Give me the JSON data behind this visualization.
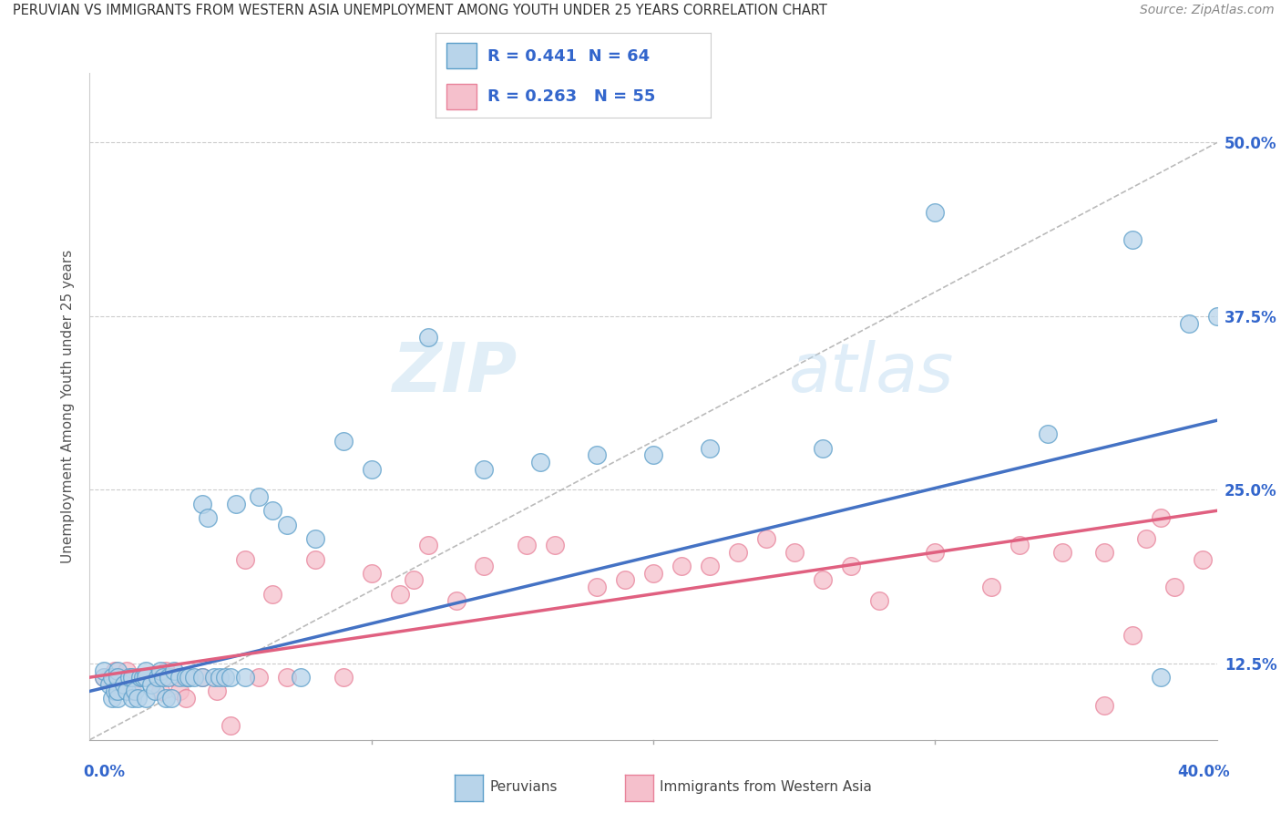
{
  "title": "PERUVIAN VS IMMIGRANTS FROM WESTERN ASIA UNEMPLOYMENT AMONG YOUTH UNDER 25 YEARS CORRELATION CHART",
  "source": "Source: ZipAtlas.com",
  "ylabel": "Unemployment Among Youth under 25 years",
  "y_ticks_labels": [
    "12.5%",
    "25.0%",
    "37.5%",
    "50.0%"
  ],
  "y_tick_vals": [
    0.125,
    0.25,
    0.375,
    0.5
  ],
  "xlim": [
    0.0,
    0.4
  ],
  "ylim": [
    0.07,
    0.55
  ],
  "x_axis_left_label": "0.0%",
  "x_axis_right_label": "40.0%",
  "legend_R1": "R = 0.441",
  "legend_N1": "N = 64",
  "legend_R2": "R = 0.263",
  "legend_N2": "N = 55",
  "color_blue_face": "#b8d4ea",
  "color_blue_edge": "#5b9ec9",
  "color_pink_face": "#f5c0cc",
  "color_pink_edge": "#e8829a",
  "color_blue_line": "#4472c4",
  "color_pink_line": "#e06080",
  "color_dashed_line": "#aaaaaa",
  "text_color": "#3366cc",
  "watermark_zip": "ZIP",
  "watermark_atlas": "atlas",
  "blue_scatter_x": [
    0.005,
    0.005,
    0.007,
    0.008,
    0.008,
    0.009,
    0.01,
    0.01,
    0.01,
    0.01,
    0.012,
    0.013,
    0.014,
    0.015,
    0.015,
    0.016,
    0.017,
    0.018,
    0.019,
    0.02,
    0.02,
    0.02,
    0.022,
    0.023,
    0.024,
    0.025,
    0.026,
    0.027,
    0.028,
    0.029,
    0.03,
    0.032,
    0.034,
    0.035,
    0.037,
    0.04,
    0.04,
    0.042,
    0.044,
    0.046,
    0.048,
    0.05,
    0.052,
    0.055,
    0.06,
    0.065,
    0.07,
    0.075,
    0.08,
    0.09,
    0.1,
    0.12,
    0.14,
    0.16,
    0.18,
    0.2,
    0.22,
    0.26,
    0.3,
    0.34,
    0.37,
    0.38,
    0.39,
    0.4
  ],
  "blue_scatter_y": [
    0.115,
    0.12,
    0.11,
    0.115,
    0.1,
    0.105,
    0.1,
    0.105,
    0.12,
    0.115,
    0.11,
    0.105,
    0.115,
    0.1,
    0.115,
    0.105,
    0.1,
    0.115,
    0.115,
    0.12,
    0.1,
    0.115,
    0.11,
    0.105,
    0.115,
    0.12,
    0.115,
    0.1,
    0.115,
    0.1,
    0.12,
    0.115,
    0.115,
    0.115,
    0.115,
    0.24,
    0.115,
    0.23,
    0.115,
    0.115,
    0.115,
    0.115,
    0.24,
    0.115,
    0.245,
    0.235,
    0.225,
    0.115,
    0.215,
    0.285,
    0.265,
    0.36,
    0.265,
    0.27,
    0.275,
    0.275,
    0.28,
    0.28,
    0.45,
    0.29,
    0.43,
    0.115,
    0.37,
    0.375
  ],
  "pink_scatter_x": [
    0.005,
    0.007,
    0.009,
    0.01,
    0.012,
    0.013,
    0.015,
    0.017,
    0.018,
    0.02,
    0.022,
    0.025,
    0.027,
    0.03,
    0.032,
    0.034,
    0.04,
    0.045,
    0.05,
    0.055,
    0.06,
    0.065,
    0.07,
    0.08,
    0.09,
    0.1,
    0.11,
    0.115,
    0.12,
    0.13,
    0.14,
    0.155,
    0.165,
    0.18,
    0.19,
    0.2,
    0.21,
    0.22,
    0.23,
    0.24,
    0.25,
    0.26,
    0.27,
    0.28,
    0.3,
    0.32,
    0.33,
    0.345,
    0.36,
    0.375,
    0.385,
    0.38,
    0.395,
    0.37,
    0.36
  ],
  "pink_scatter_y": [
    0.115,
    0.115,
    0.12,
    0.115,
    0.115,
    0.12,
    0.105,
    0.115,
    0.115,
    0.115,
    0.115,
    0.105,
    0.12,
    0.115,
    0.105,
    0.1,
    0.115,
    0.105,
    0.08,
    0.2,
    0.115,
    0.175,
    0.115,
    0.2,
    0.115,
    0.19,
    0.175,
    0.185,
    0.21,
    0.17,
    0.195,
    0.21,
    0.21,
    0.18,
    0.185,
    0.19,
    0.195,
    0.195,
    0.205,
    0.215,
    0.205,
    0.185,
    0.195,
    0.17,
    0.205,
    0.18,
    0.21,
    0.205,
    0.205,
    0.215,
    0.18,
    0.23,
    0.2,
    0.145,
    0.095
  ],
  "blue_line_x": [
    0.0,
    0.4
  ],
  "blue_line_y": [
    0.105,
    0.3
  ],
  "pink_line_x": [
    0.0,
    0.4
  ],
  "pink_line_y": [
    0.115,
    0.235
  ],
  "dashed_line_x": [
    0.0,
    0.4
  ],
  "dashed_line_y": [
    0.07,
    0.5
  ]
}
